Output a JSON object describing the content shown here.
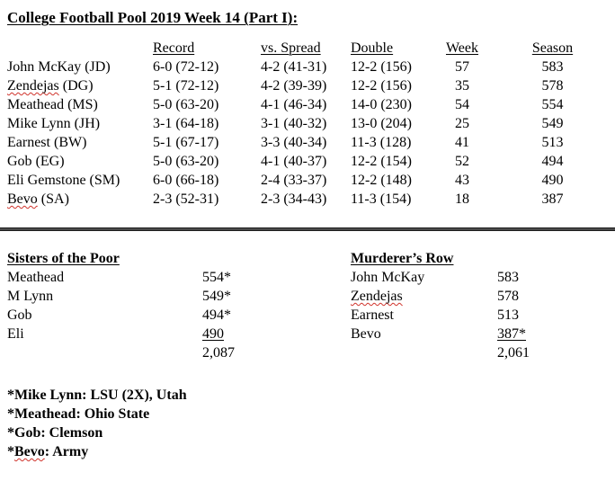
{
  "title": "College Football Pool 2019 Week 14 (Part I):",
  "pool_table": {
    "headers": {
      "record": "Record",
      "spread": "vs. Spread",
      "double": "Double",
      "week": "Week",
      "season": "Season"
    },
    "rows": [
      {
        "name": "John McKay",
        "suffix": " (JD)",
        "record": "6-0 (72-12)",
        "spread": "4-2 (41-31)",
        "double": "12-2 (156)",
        "week": "57",
        "season": "583",
        "misspelled": false
      },
      {
        "name": "Zendejas",
        "suffix": " (DG)",
        "record": "5-1 (72-12)",
        "spread": "4-2 (39-39)",
        "double": "12-2 (156)",
        "week": "35",
        "season": "578",
        "misspelled": true
      },
      {
        "name": "Meathead",
        "suffix": " (MS)",
        "record": "5-0 (63-20)",
        "spread": "4-1 (46-34)",
        "double": "14-0 (230)",
        "week": "54",
        "season": "554",
        "misspelled": false
      },
      {
        "name": "Mike Lynn",
        "suffix": " (JH)",
        "record": "3-1 (64-18)",
        "spread": "3-1 (40-32)",
        "double": "13-0 (204)",
        "week": "25",
        "season": "549",
        "misspelled": false
      },
      {
        "name": "Earnest",
        "suffix": " (BW)",
        "record": "5-1 (67-17)",
        "spread": "3-3 (40-34)",
        "double": "11-3 (128)",
        "week": "41",
        "season": "513",
        "misspelled": false
      },
      {
        "name": "Gob",
        "suffix": " (EG)",
        "record": "5-0 (63-20)",
        "spread": "4-1 (40-37)",
        "double": "12-2 (154)",
        "week": "52",
        "season": "494",
        "misspelled": false
      },
      {
        "name": "Eli Gemstone",
        "suffix": " (SM)",
        "record": "6-0 (66-18)",
        "spread": "2-4 (33-37)",
        "double": "12-2 (148)",
        "week": "43",
        "season": "490",
        "misspelled": false
      },
      {
        "name": "Bevo",
        "suffix": " (SA)",
        "record": "2-3 (52-31)",
        "spread": "2-3 (34-43)",
        "double": "11-3 (154)",
        "week": "18",
        "season": "387",
        "misspelled": true
      }
    ]
  },
  "sisters_section": {
    "heading": "Sisters of the Poor",
    "rows": [
      {
        "name": "Meathead",
        "value": "554*",
        "underlined": false
      },
      {
        "name": "M Lynn",
        "value": "549*",
        "underlined": false
      },
      {
        "name": "Gob",
        "value": "494*",
        "underlined": false
      },
      {
        "name": "Eli",
        "value": "490",
        "underlined": true
      }
    ],
    "total": "2,087"
  },
  "murderers_section": {
    "heading": "Murderer’s Row",
    "rows": [
      {
        "name": "John McKay",
        "value": "583",
        "misspelled": false,
        "underlined": false
      },
      {
        "name": "Zendejas",
        "value": "578",
        "misspelled": true,
        "underlined": false
      },
      {
        "name": "Earnest",
        "value": "513",
        "misspelled": false,
        "underlined": false
      },
      {
        "name": "Bevo",
        "value": "387*",
        "misspelled": false,
        "underlined": true
      }
    ],
    "total": "2,061"
  },
  "footnotes": [
    {
      "prefix": "*",
      "word": "Mike Lynn",
      "rest": ": LSU (2X), Utah",
      "misspelled": false
    },
    {
      "prefix": "*",
      "word": "Meathead",
      "rest": ": Ohio State",
      "misspelled": false
    },
    {
      "prefix": "*",
      "word": "Gob",
      "rest": ": Clemson",
      "misspelled": false
    },
    {
      "prefix": "*",
      "word": "Bevo",
      "rest": ": Army",
      "misspelled": true
    }
  ],
  "colors": {
    "text": "#000000",
    "background": "#ffffff",
    "spellcheck_underline": "#d0342c",
    "divider": "#1c1c1c"
  }
}
